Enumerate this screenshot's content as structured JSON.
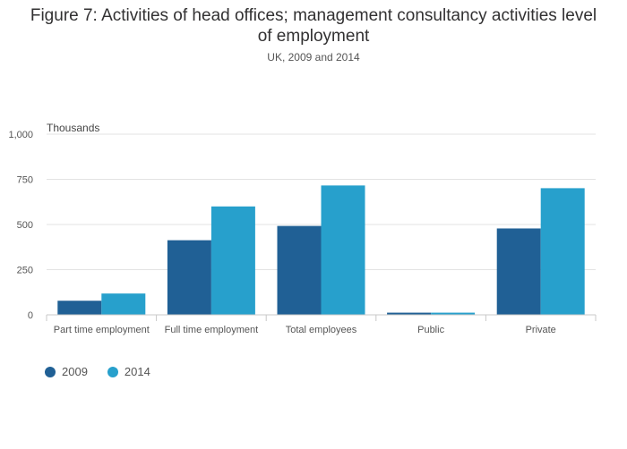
{
  "chart_data": {
    "type": "bar",
    "title_lines": [
      "Figure 7: Activities of head offices; management consultancy activities level",
      "of employment"
    ],
    "subtitle": "UK, 2009 and 2014",
    "ylabel": "Thousands",
    "ylim": [
      0,
      1000
    ],
    "yticks": [
      0,
      250,
      500,
      750,
      1000
    ],
    "ytick_labels": [
      "0",
      "250",
      "500",
      "750",
      "1,000"
    ],
    "categories": [
      "Part time employment",
      "Full time employment",
      "Total employees",
      "Public",
      "Private"
    ],
    "series": [
      {
        "name": "2009",
        "color": "#206095",
        "values": [
          78,
          413,
          492,
          12,
          478
        ]
      },
      {
        "name": "2014",
        "color": "#27a0cc",
        "values": [
          118,
          600,
          716,
          12,
          701
        ]
      }
    ],
    "grid": true,
    "legend_position": "bottom-left"
  }
}
